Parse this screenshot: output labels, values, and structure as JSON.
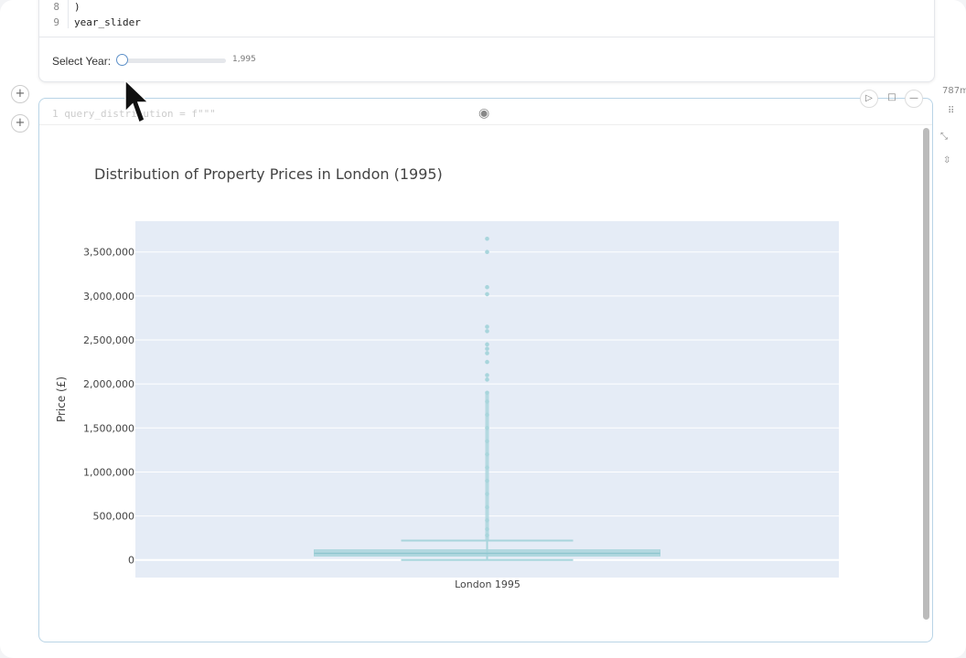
{
  "code_cell": {
    "lines": [
      {
        "num": "8",
        "text": ")"
      },
      {
        "num": "9",
        "text": "year_slider"
      }
    ]
  },
  "slider": {
    "label": "Select Year:",
    "value_text": "1,995",
    "value": 1995,
    "position_fraction": 0.0
  },
  "output_cell": {
    "ghost_code": "1   query_distribution = f\"\"\"",
    "run_icon": "play-icon",
    "stop_icon": "stop-icon",
    "collapse_icon": "minus-icon",
    "eye_icon": "eye-icon",
    "side_text": "787m"
  },
  "chart_data": {
    "type": "box",
    "title": "Distribution of Property Prices in London (1995)",
    "xlabel": "",
    "ylabel": "Price (£)",
    "categories": [
      "London 1995"
    ],
    "ylim": [
      -200000,
      3850000
    ],
    "yticks": [
      0,
      500000,
      1000000,
      1500000,
      2000000,
      2500000,
      3000000,
      3500000
    ],
    "ytick_labels": [
      "0",
      "500,000",
      "1,000,000",
      "1,500,000",
      "2,000,000",
      "2,500,000",
      "3,000,000",
      "3,500,000"
    ],
    "grid": true,
    "box": {
      "lower_fence": 0,
      "q1": 45000,
      "median": 75000,
      "q3": 115000,
      "upper_fence": 220000
    },
    "outliers": [
      3650000,
      3500000,
      3100000,
      3020000,
      2650000,
      2600000,
      2450000,
      2400000,
      2350000,
      2250000,
      2100000,
      2050000,
      1900000,
      1800000,
      1650000,
      1500000,
      1350000,
      1200000,
      1050000,
      900000,
      750000,
      600000,
      450000,
      350000,
      280000
    ],
    "color": "#a8d5dc",
    "plot_bg": "#e5ecf6"
  }
}
